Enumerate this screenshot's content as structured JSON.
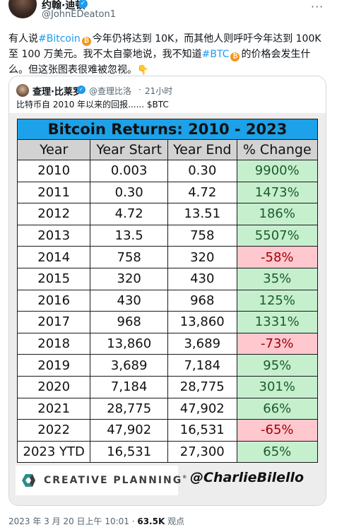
{
  "author": {
    "name": "约翰·迪顿",
    "handle": "@JohnEDeaton1"
  },
  "tweet": {
    "part1": "有人说",
    "tag_bitcoin": "#Bitcoin",
    "part2": "今年仍将达到 10K，而其他人则呼吁今年达到 100K 至 100 万美元。我不太自豪地说，我不知道",
    "tag_btc": "#BTC",
    "part3": "的价格会发生什么。但这张图表很难被忽视。"
  },
  "quote": {
    "name": "查理·比莱罗",
    "handle": "@查理比洛",
    "dot": "·",
    "time": "21小时",
    "text": "比特币自 2010 年以来的回报...... $BTC"
  },
  "chart_data": {
    "type": "table",
    "title": "Bitcoin Returns: 2010 - 2023",
    "columns": [
      "Year",
      "Year Start",
      "Year End",
      "% Change"
    ],
    "rows": [
      [
        "2010",
        "0.003",
        "0.30",
        "9900%"
      ],
      [
        "2011",
        "0.30",
        "4.72",
        "1473%"
      ],
      [
        "2012",
        "4.72",
        "13.51",
        "186%"
      ],
      [
        "2013",
        "13.5",
        "758",
        "5507%"
      ],
      [
        "2014",
        "758",
        "320",
        "-58%"
      ],
      [
        "2015",
        "320",
        "430",
        "35%"
      ],
      [
        "2016",
        "430",
        "968",
        "125%"
      ],
      [
        "2017",
        "968",
        "13,860",
        "1331%"
      ],
      [
        "2018",
        "13,860",
        "3,689",
        "-73%"
      ],
      [
        "2019",
        "3,689",
        "7,184",
        "95%"
      ],
      [
        "2020",
        "7,184",
        "28,775",
        "301%"
      ],
      [
        "2021",
        "28,775",
        "47,902",
        "66%"
      ],
      [
        "2022",
        "47,902",
        "16,531",
        "-65%"
      ],
      [
        "2023 YTD",
        "16,531",
        "27,300",
        "65%"
      ]
    ],
    "colors": {
      "title_bg": "#1da1e8",
      "header_bg": "#d2d2d2",
      "positive_bg": "#c6efce",
      "negative_bg": "#ffc7ce"
    }
  },
  "brand": {
    "name": "CREATIVE PLANNING",
    "mark": "®",
    "signature": "@CharlieBilello"
  },
  "footer": {
    "timestamp": "2023 年 3 月 20 日上午 10:01 · ",
    "views_count": "63.5K",
    "views_label": " 观点"
  },
  "icons": {
    "more": "more-icon",
    "verified": "verified-badge-icon",
    "bitcoin": "bitcoin-coin-icon",
    "pointing": "pointing-down-icon"
  }
}
